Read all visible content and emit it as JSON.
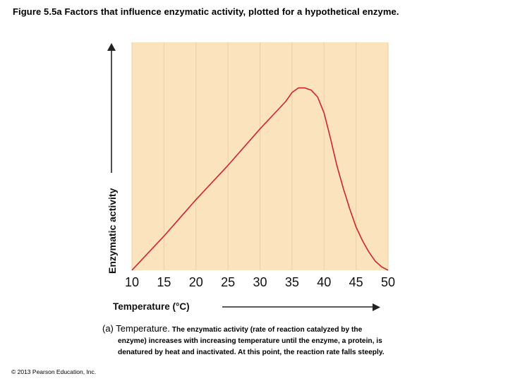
{
  "title": "Figure 5.5a Factors that influence enzymatic activity, plotted for a hypothetical enzyme.",
  "caption": {
    "lead": "(a) Temperature.",
    "line1": "The enzymatic activity (rate of reaction catalyzed by the",
    "line2": "enzyme) increases with increasing temperature until the enzyme, a protein, is",
    "line3": "denatured by heat and inactivated. At this point, the reaction rate falls steeply."
  },
  "copyright": "© 2013 Pearson Education, Inc.",
  "colors": {
    "plot_bg": "#fbe3bd",
    "grid": "#e9cfa6",
    "curve": "#d2232a",
    "axis": "#222222"
  },
  "chart_data": {
    "type": "line",
    "title": "",
    "xlabel": "Temperature (°C)",
    "ylabel": "Enzymatic activity",
    "xlim": [
      10,
      50
    ],
    "ylim": [
      0,
      1
    ],
    "x_ticks": [
      10,
      15,
      20,
      25,
      30,
      35,
      40,
      45,
      50
    ],
    "grid": true,
    "series": [
      {
        "x": [
          10,
          15,
          20,
          25,
          30,
          34,
          35,
          36,
          37,
          38,
          39,
          40,
          41,
          42,
          43,
          44,
          45,
          46,
          47,
          48,
          49,
          50
        ],
        "y": [
          0.0,
          0.15,
          0.31,
          0.46,
          0.62,
          0.74,
          0.78,
          0.8,
          0.8,
          0.79,
          0.76,
          0.69,
          0.58,
          0.46,
          0.36,
          0.27,
          0.19,
          0.13,
          0.08,
          0.04,
          0.015,
          0.0
        ]
      }
    ]
  }
}
